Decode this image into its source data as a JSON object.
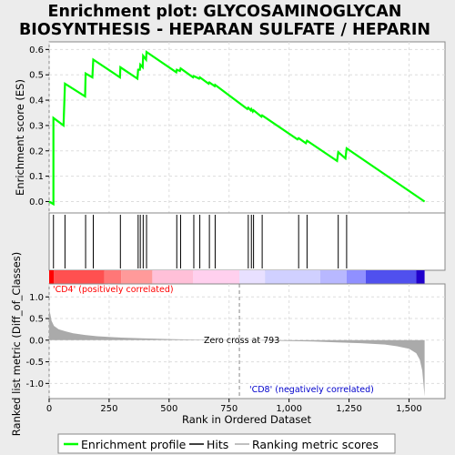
{
  "title_line1": "Enrichment plot: GLYCOSAMINOGLYCAN",
  "title_line2": "BIOSYNTHESIS - HEPARAN SULFATE / HEPARIN",
  "colors": {
    "es_line": "#00ff00",
    "hits": "#000000",
    "metric_fill": "#aaaaaa",
    "positive_label": "#ff0000",
    "negative_label": "#0000cc",
    "zero_cross_line": "#888888"
  },
  "legend": {
    "enrichment": "Enrichment profile",
    "hits": "Hits",
    "ranking": "Ranking metric scores"
  },
  "chart_data": [
    {
      "type": "line",
      "ylabel": "Enrichment score (ES)",
      "xlim": [
        0,
        1650
      ],
      "ylim": [
        -0.045,
        0.63
      ],
      "yticks": [
        0.0,
        0.1,
        0.2,
        0.3,
        0.4,
        0.5,
        0.6
      ],
      "ytick_labels": [
        "0.0",
        "0.1",
        "0.2",
        "0.3",
        "0.4",
        "0.5",
        "0.6"
      ],
      "grid": true,
      "series": [
        {
          "x": [
            0,
            18,
            18,
            60,
            66,
            150,
            152,
            180,
            184,
            295,
            297,
            368,
            371,
            378,
            380,
            390,
            392,
            404,
            406,
            530,
            532,
            545,
            548,
            600,
            603,
            625,
            628,
            665,
            668,
            690,
            692,
            826,
            830,
            840,
            843,
            849,
            852,
            885,
            888,
            1035,
            1040,
            1070,
            1075,
            1200,
            1205,
            1235,
            1240,
            1565
          ],
          "y": [
            0.0,
            -0.01,
            0.33,
            0.3,
            0.465,
            0.415,
            0.505,
            0.49,
            0.56,
            0.49,
            0.53,
            0.485,
            0.52,
            0.52,
            0.54,
            0.53,
            0.575,
            0.56,
            0.59,
            0.51,
            0.52,
            0.515,
            0.525,
            0.49,
            0.495,
            0.485,
            0.49,
            0.465,
            0.47,
            0.455,
            0.46,
            0.365,
            0.37,
            0.36,
            0.365,
            0.355,
            0.36,
            0.335,
            0.34,
            0.245,
            0.25,
            0.23,
            0.24,
            0.16,
            0.195,
            0.17,
            0.21,
            0.0
          ]
        }
      ]
    },
    {
      "type": "scatter",
      "description_role": "hits",
      "x": [
        18,
        66,
        152,
        184,
        297,
        371,
        380,
        392,
        406,
        532,
        548,
        603,
        628,
        668,
        692,
        830,
        843,
        852,
        888,
        1040,
        1075,
        1205,
        1240
      ]
    },
    {
      "type": "area",
      "ylabel": "Ranked list metric (Diff_of_Classes)",
      "xlabel": "Rank in Ordered Dataset",
      "xlim": [
        0,
        1650
      ],
      "ylim": [
        -1.35,
        1.3
      ],
      "yticks": [
        -1.0,
        -0.5,
        0.0,
        0.5,
        1.0
      ],
      "ytick_labels": [
        "-1.0",
        "-0.5",
        "0.0",
        "0.5",
        "1.0"
      ],
      "xticks": [
        0,
        250,
        500,
        750,
        1000,
        1250,
        1500
      ],
      "xtick_labels": [
        "0",
        "250",
        "500",
        "750",
        "1,000",
        "1,250",
        "1,500"
      ],
      "grid": true,
      "zero_cross": 793,
      "zero_cross_label": "Zero cross at 793",
      "positive_label": "'CD4' (positively correlated)",
      "negative_label": "'CD8' (negatively correlated)",
      "series": [
        {
          "x": [
            0,
            5,
            10,
            20,
            40,
            70,
            100,
            150,
            200,
            300,
            400,
            500,
            600,
            700,
            793,
            900,
            1000,
            1100,
            1200,
            1300,
            1400,
            1450,
            1500,
            1530,
            1545,
            1555,
            1560,
            1565
          ],
          "y": [
            0.7,
            0.6,
            0.45,
            0.33,
            0.25,
            0.2,
            0.16,
            0.12,
            0.09,
            0.06,
            0.04,
            0.025,
            0.015,
            0.007,
            0.0,
            -0.01,
            -0.02,
            -0.03,
            -0.05,
            -0.07,
            -0.1,
            -0.14,
            -0.2,
            -0.3,
            -0.45,
            -0.7,
            -1.0,
            -1.3
          ]
        }
      ]
    }
  ]
}
